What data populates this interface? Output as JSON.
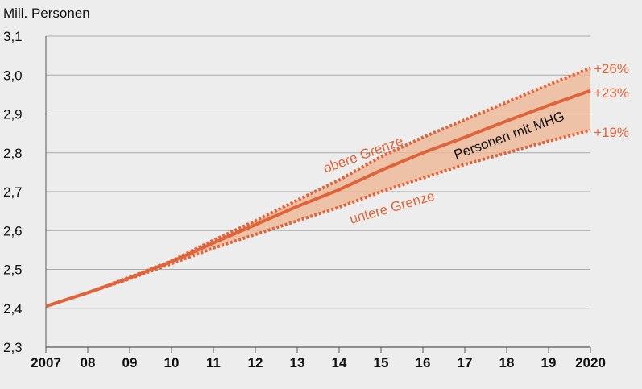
{
  "chart_data": {
    "type": "line",
    "ylabel": "Mill. Personen",
    "ylim": [
      2.3,
      3.1
    ],
    "yticks": [
      "2,3",
      "2,4",
      "2,5",
      "2,6",
      "2,7",
      "2,8",
      "2,9",
      "3,0",
      "3,1"
    ],
    "ytick_values": [
      2.3,
      2.4,
      2.5,
      2.6,
      2.7,
      2.8,
      2.9,
      3.0,
      3.1
    ],
    "xticks": [
      "2007",
      "08",
      "09",
      "10",
      "11",
      "12",
      "13",
      "14",
      "15",
      "16",
      "17",
      "18",
      "19",
      "2020"
    ],
    "x": [
      2007,
      2008,
      2009,
      2010,
      2011,
      2012,
      2013,
      2014,
      2015,
      2016,
      2017,
      2018,
      2019,
      2020
    ],
    "grid": true,
    "colors": {
      "line": "#e0643b",
      "band": "#efb796",
      "grid": "#a9a9a9",
      "background": "#ecedec"
    },
    "series": [
      {
        "key": "main",
        "values": [
          2.405,
          2.44,
          2.478,
          2.52,
          2.568,
          2.615,
          2.662,
          2.705,
          2.755,
          2.8,
          2.84,
          2.882,
          2.922,
          2.96
        ]
      },
      {
        "key": "upper",
        "values": [
          2.405,
          2.44,
          2.48,
          2.522,
          2.575,
          2.625,
          2.678,
          2.73,
          2.79,
          2.84,
          2.885,
          2.93,
          2.975,
          3.018
        ]
      },
      {
        "key": "lower",
        "values": [
          2.405,
          2.44,
          2.476,
          2.515,
          2.555,
          2.59,
          2.625,
          2.66,
          2.7,
          2.735,
          2.77,
          2.8,
          2.83,
          2.858
        ]
      }
    ],
    "annotations": {
      "upper_label": "obere Grenze",
      "lower_label": "untere Grenze",
      "main_label": "Personen mit MHG",
      "pct_upper": "+26%",
      "pct_main": "+23%",
      "pct_lower": "+19%"
    }
  }
}
